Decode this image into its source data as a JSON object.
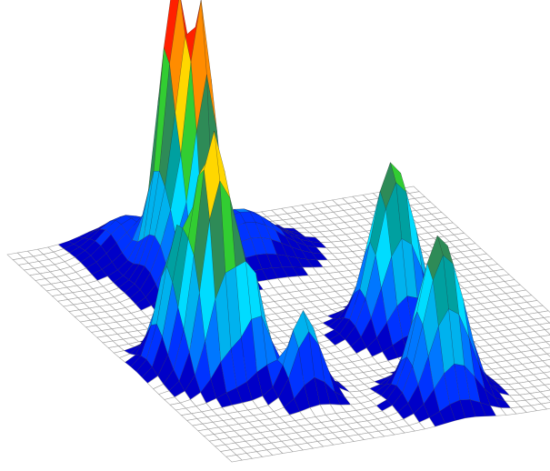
{
  "chart_data": {
    "type": "surface",
    "grid": {
      "n": 40,
      "domain": [
        0,
        1
      ]
    },
    "surface_color": "#ffffff",
    "grid_line_color": "#9a9a9a",
    "mesh_line_color": "#2a2a2a",
    "colormap": [
      "#0000c8",
      "#0033ff",
      "#0077ff",
      "#00b2ee",
      "#00dcff",
      "#00a0a0",
      "#2e8b57",
      "#32cd32",
      "#7cfc00",
      "#ffd700",
      "#ff8c00",
      "#ff2000"
    ],
    "peaks": [
      {
        "name": "",
        "x": 0.3,
        "y": 0.2,
        "amplitude": 1.6,
        "sx": 0.03,
        "sy": 0.035
      },
      {
        "name": "",
        "x": 0.33,
        "y": 0.28,
        "amplitude": 1.4,
        "sx": 0.028,
        "sy": 0.03
      },
      {
        "name": "",
        "x": 0.28,
        "y": 0.26,
        "amplitude": 0.6,
        "sx": 0.05,
        "sy": 0.05
      },
      {
        "name": "",
        "x": 0.15,
        "y": 0.65,
        "amplitude": 1.55,
        "sx": 0.04,
        "sy": 0.04
      },
      {
        "name": "",
        "x": 0.1,
        "y": 0.57,
        "amplitude": 0.8,
        "sx": 0.035,
        "sy": 0.04
      },
      {
        "name": "",
        "x": 0.22,
        "y": 0.7,
        "amplitude": 0.6,
        "sx": 0.03,
        "sy": 0.03
      },
      {
        "name": "",
        "x": 0.3,
        "y": 0.78,
        "amplitude": 0.55,
        "sx": 0.035,
        "sy": 0.03
      },
      {
        "name": "",
        "x": 0.63,
        "y": 0.58,
        "amplitude": 1.1,
        "sx": 0.05,
        "sy": 0.045
      },
      {
        "name": "",
        "x": 0.58,
        "y": 0.88,
        "amplitude": 1.05,
        "sx": 0.05,
        "sy": 0.045
      },
      {
        "name": "",
        "x": 0.48,
        "y": 0.17,
        "amplitude": 0.3,
        "sx": 0.08,
        "sy": 0.06
      },
      {
        "name": "",
        "x": 0.25,
        "y": 0.09,
        "amplitude": 0.25,
        "sx": 0.06,
        "sy": 0.06
      }
    ],
    "z_range": [
      0,
      1.7
    ],
    "colorbar": false,
    "axes_visible": false
  }
}
